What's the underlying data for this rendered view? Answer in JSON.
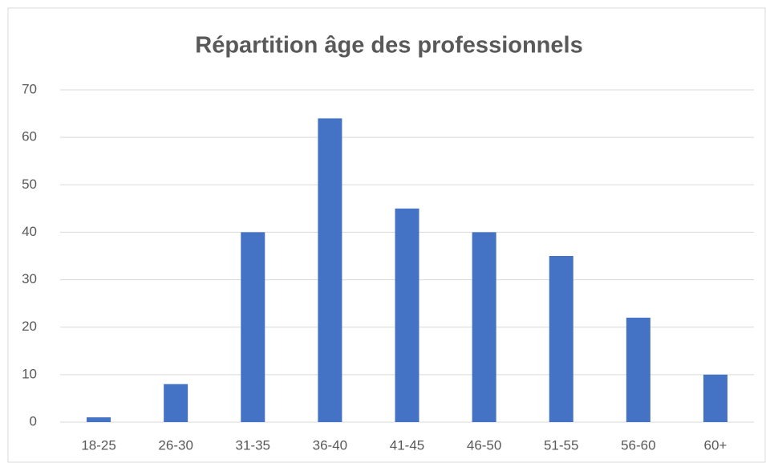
{
  "chart_data": {
    "type": "bar",
    "title": "Répartition âge des professionnels",
    "categories": [
      "18-25",
      "26-30",
      "31-35",
      "36-40",
      "41-45",
      "46-50",
      "51-55",
      "56-60",
      "60+"
    ],
    "values": [
      1,
      8,
      40,
      64,
      45,
      40,
      35,
      22,
      10
    ],
    "color": "#4472c4",
    "ylim": [
      0,
      70
    ],
    "yticks": [
      0,
      10,
      20,
      30,
      40,
      50,
      60,
      70
    ],
    "grid": true
  }
}
